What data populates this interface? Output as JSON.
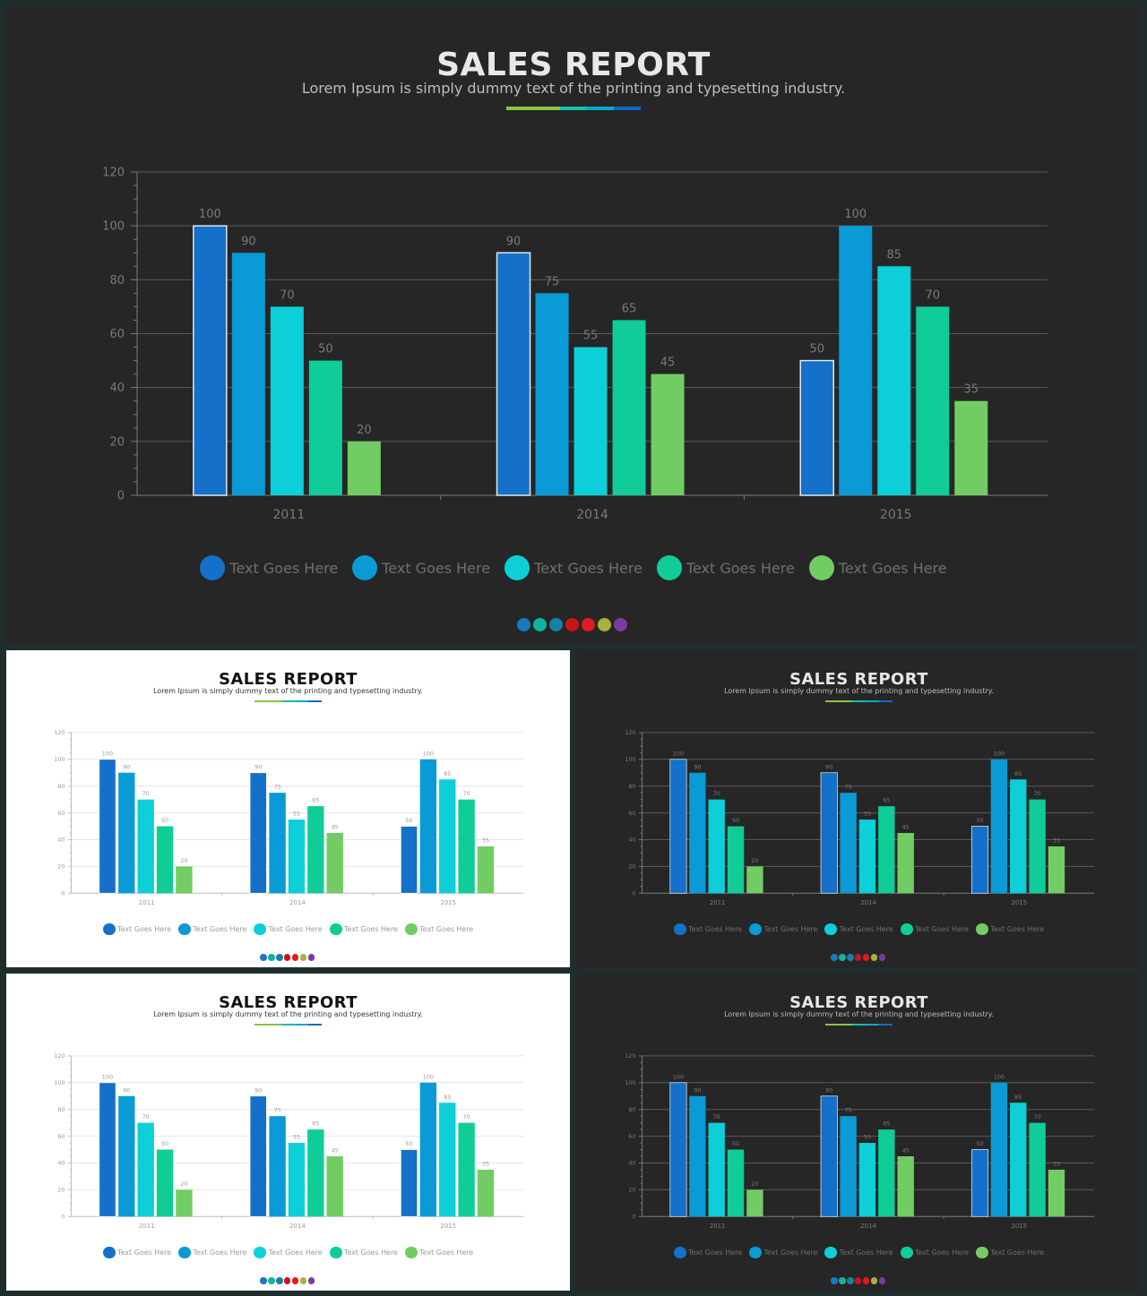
{
  "slides": [
    {
      "id": "main",
      "theme": "dark"
    },
    {
      "id": "thumb-1",
      "theme": "light"
    },
    {
      "id": "thumb-2",
      "theme": "dark"
    },
    {
      "id": "thumb-3",
      "theme": "light"
    },
    {
      "id": "thumb-4",
      "theme": "dark"
    }
  ],
  "slide": {
    "title": "SALES REPORT",
    "subtitle": "Lorem Ipsum is simply dummy text of the printing and typesetting industry."
  },
  "legend": [
    {
      "label": "Text Goes Here",
      "color": "#1470c8"
    },
    {
      "label": "Text Goes Here",
      "color": "#0a9ad6"
    },
    {
      "label": "Text Goes Here",
      "color": "#0ccfd8"
    },
    {
      "label": "Text Goes Here",
      "color": "#10cc98"
    },
    {
      "label": "Text Goes Here",
      "color": "#72cc64"
    }
  ],
  "theme_dots": [
    "#1a78c2",
    "#10b4a0",
    "#1a7fa8",
    "#c8151b",
    "#e01a22",
    "#a7b23c",
    "#7b3aa0"
  ],
  "chart_data": {
    "type": "bar",
    "categories": [
      "2011",
      "2014",
      "2015"
    ],
    "series": [
      {
        "color": "#1470c8",
        "values": [
          100,
          90,
          50
        ]
      },
      {
        "color": "#0a9ad6",
        "values": [
          90,
          75,
          100
        ]
      },
      {
        "color": "#0ccfd8",
        "values": [
          70,
          55,
          85
        ]
      },
      {
        "color": "#10cc98",
        "values": [
          50,
          65,
          70
        ]
      },
      {
        "color": "#72cc64",
        "values": [
          20,
          45,
          35
        ]
      }
    ],
    "data_labels": [
      [
        "100",
        "90",
        "50"
      ],
      [
        "90",
        "75",
        "100"
      ],
      [
        "70",
        "55",
        "85"
      ],
      [
        "50",
        "65",
        "70"
      ],
      [
        "20",
        "45",
        "35"
      ]
    ],
    "ylim": [
      0,
      120
    ],
    "yticks": [
      0,
      20,
      40,
      60,
      80,
      100,
      120
    ],
    "grid": true,
    "legend_position": "bottom"
  }
}
